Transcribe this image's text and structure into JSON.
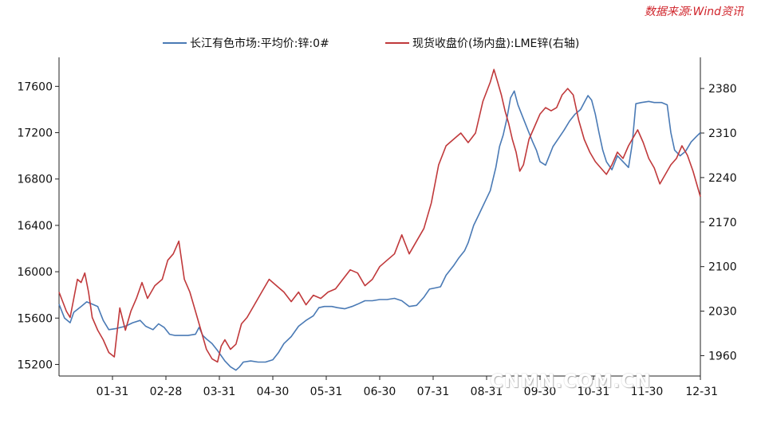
{
  "source_label": "数据来源:Wind资讯",
  "watermark": "CNMN.COM.CN",
  "colors": {
    "series_left": "#4a7ab5",
    "series_right": "#c0393b",
    "source": "#d0242b"
  },
  "chart_data": {
    "type": "line",
    "title": "",
    "legend": [
      "长江有色市场:平均价:锌:0#",
      "现货收盘价(场内盘):LME锌(右轴)"
    ],
    "x_tick_labels": [
      "01-31",
      "02-28",
      "03-31",
      "04-30",
      "05-31",
      "06-30",
      "07-31",
      "08-31",
      "09-30",
      "10-31",
      "11-30",
      "12-31"
    ],
    "x_range": [
      0,
      348
    ],
    "y_left": {
      "range": [
        15100,
        17850
      ],
      "ticks": [
        15200,
        15600,
        16000,
        16400,
        16800,
        17200,
        17600
      ]
    },
    "y_right": {
      "range": [
        1928,
        2429
      ],
      "ticks": [
        1960,
        2030,
        2100,
        2170,
        2240,
        2310,
        2380
      ]
    },
    "series": [
      {
        "name": "长江有色市场:平均价:锌:0#",
        "axis": "left",
        "points": [
          [
            0,
            15720
          ],
          [
            3,
            15600
          ],
          [
            6,
            15560
          ],
          [
            8,
            15650
          ],
          [
            12,
            15700
          ],
          [
            15,
            15740
          ],
          [
            18,
            15720
          ],
          [
            21,
            15700
          ],
          [
            24,
            15580
          ],
          [
            27,
            15500
          ],
          [
            31,
            15510
          ],
          [
            36,
            15530
          ],
          [
            40,
            15560
          ],
          [
            44,
            15580
          ],
          [
            47,
            15530
          ],
          [
            51,
            15500
          ],
          [
            54,
            15550
          ],
          [
            57,
            15520
          ],
          [
            60,
            15460
          ],
          [
            63,
            15450
          ],
          [
            66,
            15450
          ],
          [
            70,
            15450
          ],
          [
            74,
            15460
          ],
          [
            76,
            15520
          ],
          [
            78,
            15450
          ],
          [
            80,
            15420
          ],
          [
            83,
            15380
          ],
          [
            86,
            15320
          ],
          [
            90,
            15230
          ],
          [
            93,
            15180
          ],
          [
            96,
            15150
          ],
          [
            98,
            15180
          ],
          [
            100,
            15220
          ],
          [
            104,
            15230
          ],
          [
            108,
            15220
          ],
          [
            112,
            15220
          ],
          [
            116,
            15240
          ],
          [
            119,
            15300
          ],
          [
            122,
            15380
          ],
          [
            126,
            15440
          ],
          [
            130,
            15530
          ],
          [
            134,
            15580
          ],
          [
            138,
            15620
          ],
          [
            141,
            15690
          ],
          [
            144,
            15700
          ],
          [
            148,
            15700
          ],
          [
            151,
            15690
          ],
          [
            155,
            15680
          ],
          [
            159,
            15700
          ],
          [
            162,
            15720
          ],
          [
            166,
            15750
          ],
          [
            170,
            15750
          ],
          [
            174,
            15760
          ],
          [
            178,
            15760
          ],
          [
            182,
            15770
          ],
          [
            186,
            15750
          ],
          [
            190,
            15700
          ],
          [
            194,
            15710
          ],
          [
            198,
            15780
          ],
          [
            201,
            15850
          ],
          [
            204,
            15860
          ],
          [
            207,
            15870
          ],
          [
            210,
            15970
          ],
          [
            214,
            16050
          ],
          [
            217,
            16120
          ],
          [
            220,
            16180
          ],
          [
            222,
            16250
          ],
          [
            225,
            16400
          ],
          [
            228,
            16500
          ],
          [
            231,
            16600
          ],
          [
            234,
            16700
          ],
          [
            237,
            16900
          ],
          [
            239,
            17080
          ],
          [
            241,
            17180
          ],
          [
            243,
            17320
          ],
          [
            245,
            17500
          ],
          [
            247,
            17560
          ],
          [
            249,
            17440
          ],
          [
            251,
            17360
          ],
          [
            253,
            17280
          ],
          [
            255,
            17200
          ],
          [
            257,
            17120
          ],
          [
            259,
            17050
          ],
          [
            261,
            16950
          ],
          [
            264,
            16920
          ],
          [
            266,
            17000
          ],
          [
            268,
            17080
          ],
          [
            271,
            17150
          ],
          [
            274,
            17220
          ],
          [
            277,
            17300
          ],
          [
            280,
            17360
          ],
          [
            283,
            17400
          ],
          [
            285,
            17460
          ],
          [
            287,
            17520
          ],
          [
            289,
            17480
          ],
          [
            291,
            17360
          ],
          [
            293,
            17200
          ],
          [
            295,
            17050
          ],
          [
            297,
            16950
          ],
          [
            300,
            16880
          ],
          [
            303,
            17000
          ],
          [
            306,
            16950
          ],
          [
            309,
            16900
          ],
          [
            311,
            17100
          ],
          [
            313,
            17450
          ],
          [
            316,
            17460
          ],
          [
            320,
            17470
          ],
          [
            323,
            17460
          ],
          [
            327,
            17460
          ],
          [
            330,
            17440
          ],
          [
            332,
            17200
          ],
          [
            334,
            17050
          ],
          [
            337,
            17000
          ],
          [
            340,
            17040
          ],
          [
            343,
            17120
          ],
          [
            346,
            17170
          ],
          [
            348,
            17200
          ]
        ]
      },
      {
        "name": "现货收盘价(场内盘):LME锌(右轴)",
        "axis": "right",
        "points": [
          [
            0,
            2060
          ],
          [
            2,
            2045
          ],
          [
            4,
            2030
          ],
          [
            6,
            2020
          ],
          [
            8,
            2050
          ],
          [
            10,
            2080
          ],
          [
            12,
            2075
          ],
          [
            14,
            2090
          ],
          [
            16,
            2060
          ],
          [
            18,
            2020
          ],
          [
            21,
            2000
          ],
          [
            24,
            1985
          ],
          [
            27,
            1965
          ],
          [
            30,
            1958
          ],
          [
            33,
            2035
          ],
          [
            36,
            2000
          ],
          [
            39,
            2030
          ],
          [
            42,
            2050
          ],
          [
            45,
            2075
          ],
          [
            48,
            2050
          ],
          [
            52,
            2070
          ],
          [
            56,
            2080
          ],
          [
            59,
            2110
          ],
          [
            62,
            2120
          ],
          [
            65,
            2140
          ],
          [
            68,
            2080
          ],
          [
            71,
            2060
          ],
          [
            74,
            2030
          ],
          [
            77,
            2000
          ],
          [
            80,
            1970
          ],
          [
            83,
            1955
          ],
          [
            86,
            1950
          ],
          [
            88,
            1975
          ],
          [
            90,
            1985
          ],
          [
            93,
            1970
          ],
          [
            96,
            1978
          ],
          [
            99,
            2010
          ],
          [
            102,
            2020
          ],
          [
            106,
            2040
          ],
          [
            110,
            2060
          ],
          [
            114,
            2080
          ],
          [
            118,
            2070
          ],
          [
            122,
            2060
          ],
          [
            126,
            2045
          ],
          [
            130,
            2060
          ],
          [
            134,
            2040
          ],
          [
            138,
            2055
          ],
          [
            142,
            2050
          ],
          [
            146,
            2060
          ],
          [
            150,
            2065
          ],
          [
            154,
            2080
          ],
          [
            158,
            2095
          ],
          [
            162,
            2090
          ],
          [
            166,
            2070
          ],
          [
            170,
            2080
          ],
          [
            174,
            2100
          ],
          [
            178,
            2110
          ],
          [
            182,
            2120
          ],
          [
            186,
            2150
          ],
          [
            190,
            2120
          ],
          [
            194,
            2140
          ],
          [
            198,
            2160
          ],
          [
            202,
            2200
          ],
          [
            206,
            2260
          ],
          [
            210,
            2290
          ],
          [
            214,
            2300
          ],
          [
            218,
            2310
          ],
          [
            222,
            2295
          ],
          [
            226,
            2310
          ],
          [
            230,
            2360
          ],
          [
            234,
            2390
          ],
          [
            236,
            2410
          ],
          [
            238,
            2390
          ],
          [
            240,
            2370
          ],
          [
            242,
            2345
          ],
          [
            244,
            2325
          ],
          [
            246,
            2300
          ],
          [
            248,
            2280
          ],
          [
            250,
            2250
          ],
          [
            252,
            2260
          ],
          [
            255,
            2300
          ],
          [
            258,
            2320
          ],
          [
            261,
            2340
          ],
          [
            264,
            2350
          ],
          [
            267,
            2345
          ],
          [
            270,
            2350
          ],
          [
            273,
            2370
          ],
          [
            276,
            2380
          ],
          [
            279,
            2370
          ],
          [
            282,
            2330
          ],
          [
            285,
            2300
          ],
          [
            288,
            2280
          ],
          [
            291,
            2265
          ],
          [
            294,
            2255
          ],
          [
            297,
            2245
          ],
          [
            300,
            2260
          ],
          [
            303,
            2280
          ],
          [
            306,
            2270
          ],
          [
            309,
            2290
          ],
          [
            311,
            2300
          ],
          [
            314,
            2315
          ],
          [
            317,
            2295
          ],
          [
            320,
            2270
          ],
          [
            323,
            2255
          ],
          [
            326,
            2230
          ],
          [
            329,
            2245
          ],
          [
            332,
            2260
          ],
          [
            335,
            2270
          ],
          [
            338,
            2290
          ],
          [
            341,
            2275
          ],
          [
            344,
            2250
          ],
          [
            346,
            2230
          ],
          [
            348,
            2210
          ]
        ]
      }
    ]
  }
}
